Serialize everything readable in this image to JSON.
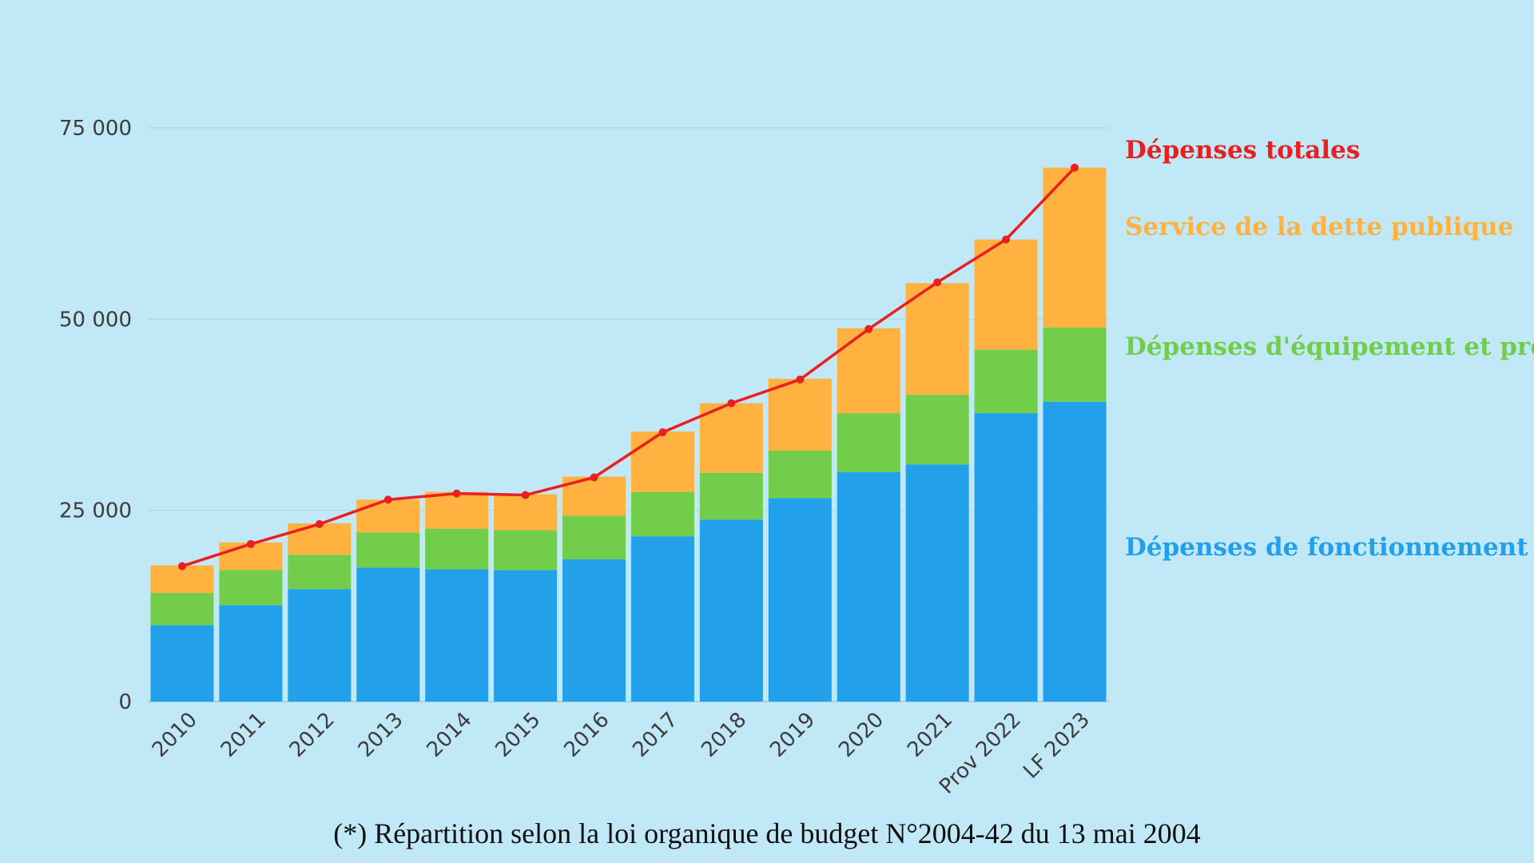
{
  "chart_data": {
    "type": "bar",
    "stacked": true,
    "categories": [
      "2010",
      "2011",
      "2012",
      "2013",
      "2014",
      "2015",
      "2016",
      "2017",
      "2018",
      "2019",
      "2020",
      "2021",
      "Prov 2022",
      "LF 2023"
    ],
    "series": [
      {
        "name": "Dépenses de fonctionnement",
        "color": "#22a1ea",
        "values": [
          10000,
          12600,
          14700,
          17500,
          17300,
          17200,
          18600,
          21600,
          23800,
          26600,
          30000,
          31000,
          37700,
          39200
        ]
      },
      {
        "name": "Dépenses d'équipement et prêts",
        "color": "#72cd4b",
        "values": [
          4200,
          4600,
          4500,
          4600,
          5300,
          5200,
          5700,
          5800,
          6100,
          6200,
          7700,
          9100,
          8300,
          9700
        ]
      },
      {
        "name": "Service de la dette publique",
        "color": "#ffb23f",
        "values": [
          3600,
          3600,
          4100,
          4300,
          4800,
          4700,
          5100,
          7900,
          9100,
          9400,
          11100,
          14600,
          14400,
          20900
        ]
      }
    ],
    "line": {
      "name": "Dépenses totales",
      "color": "#ea1f1f",
      "values": [
        17700,
        20600,
        23200,
        26400,
        27200,
        27000,
        29300,
        35200,
        39000,
        42100,
        48700,
        54800,
        60400,
        69800
      ]
    },
    "yticks": [
      "0",
      "25 000",
      "50 000",
      "75 000"
    ],
    "ytick_values": [
      0,
      25000,
      50000,
      75000
    ],
    "ylim": [
      0,
      75000
    ],
    "xlabel": "",
    "ylabel": "",
    "grid": true,
    "legend_placement": "right"
  },
  "footnote": "(*) Répartition selon la loi organique de budget N°2004-42 du 13 mai 2004"
}
